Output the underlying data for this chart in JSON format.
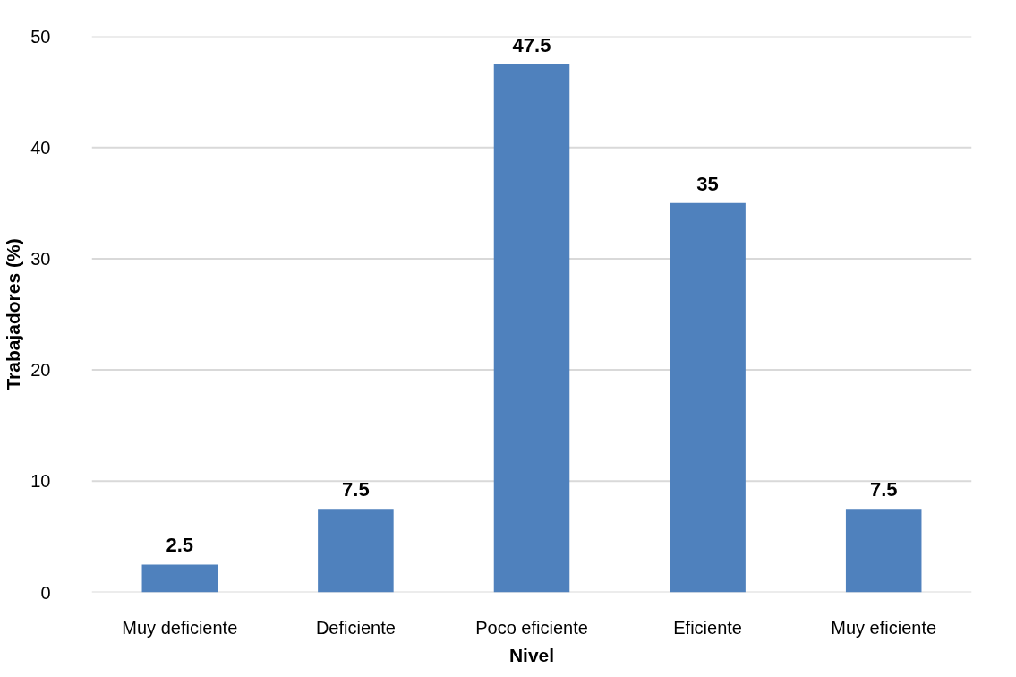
{
  "chart_data": {
    "type": "bar",
    "xlabel": "Nivel",
    "ylabel": "Trabajadores (%)",
    "categories": [
      "Muy deficiente",
      "Deficiente",
      "Poco eficiente",
      "Eficiente",
      "Muy eficiente"
    ],
    "values": [
      2.5,
      7.5,
      47.5,
      35,
      7.5
    ],
    "color": "#4f81bd",
    "ylim": [
      0,
      50
    ],
    "yticks": [
      0,
      10,
      20,
      30,
      40,
      50
    ],
    "grid": "y",
    "data_labels": true
  }
}
